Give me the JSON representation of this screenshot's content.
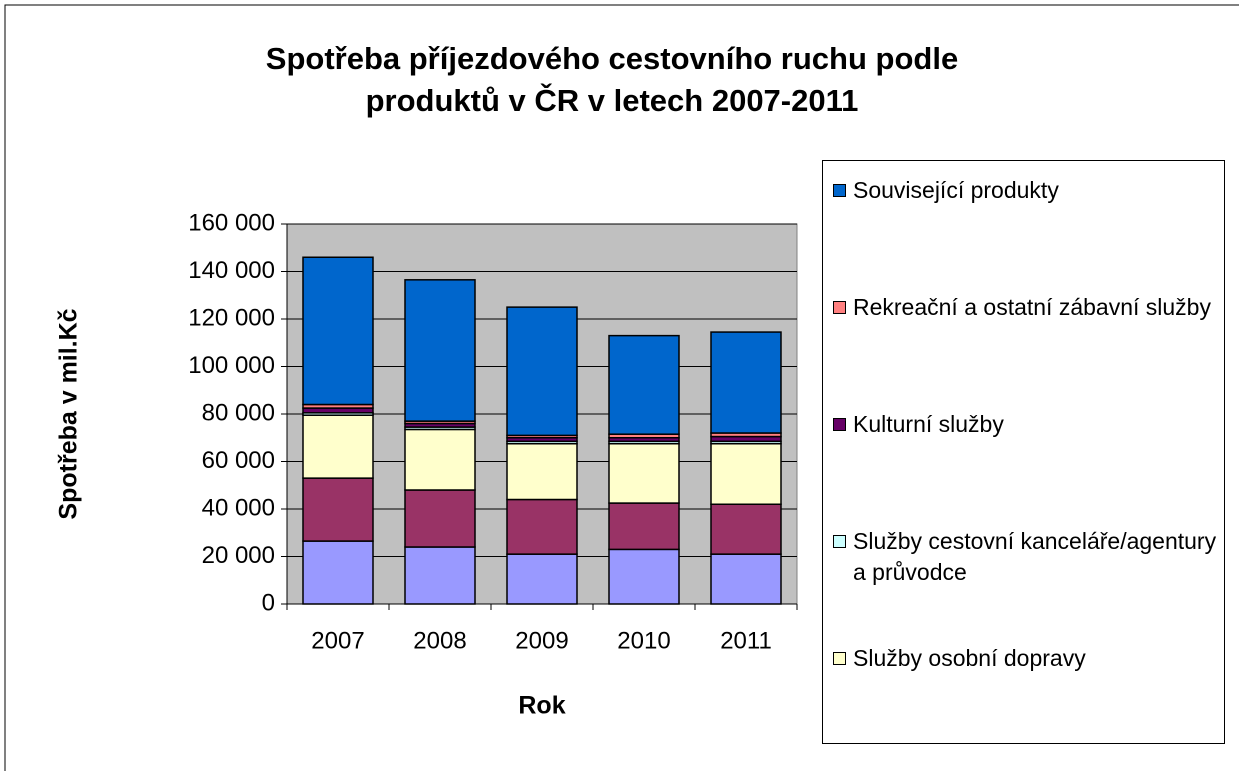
{
  "chart_data": {
    "type": "bar",
    "stacked": true,
    "title": "Spotřeba příjezdového cestovního ruchu podle produktů v ČR v letech 2007-2011",
    "x_label": "Rok",
    "y_label": "Spotřeba v mil.Kč",
    "categories": [
      "2007",
      "2008",
      "2009",
      "2010",
      "2011"
    ],
    "series": [
      {
        "color": "#9999ff",
        "values": [
          26500,
          24000,
          21000,
          23000,
          21000
        ]
      },
      {
        "color": "#993366",
        "values": [
          26500,
          24000,
          23000,
          19500,
          21000
        ]
      },
      {
        "name": "Služby osobní dopravy",
        "color": "#ffffcc",
        "values": [
          26500,
          25500,
          23500,
          25000,
          25500
        ]
      },
      {
        "name": "Služby cestovní kanceláře/agentury a průvodce",
        "color": "#ccffff",
        "values": [
          1000,
          1000,
          1000,
          1000,
          1000
        ]
      },
      {
        "name": "Kulturní služby",
        "color": "#660066",
        "values": [
          2000,
          1500,
          1500,
          1500,
          2000
        ]
      },
      {
        "name": "Rekreační a ostatní zábavní služby",
        "color": "#ff8080",
        "values": [
          1500,
          1000,
          1000,
          1500,
          1500
        ]
      },
      {
        "name": "Související produkty",
        "color": "#0066cc",
        "values": [
          62000,
          59500,
          54000,
          41500,
          42500
        ]
      }
    ],
    "ylim": [
      0,
      160000
    ],
    "yticks": [
      0,
      {
        "value": 20000,
        "label": "20 000"
      },
      {
        "value": 40000,
        "label": "40 000"
      },
      {
        "value": 60000,
        "label": "60 000"
      },
      {
        "value": 80000,
        "label": "80 000"
      },
      {
        "value": 100000,
        "label": "100 000"
      },
      {
        "value": 120000,
        "label": "120 000"
      },
      {
        "value": 140000,
        "label": "140 000"
      },
      {
        "value": 160000,
        "label": "160 000"
      }
    ],
    "grid": true,
    "legend": "right",
    "plot_background": "#c0c0c0"
  }
}
